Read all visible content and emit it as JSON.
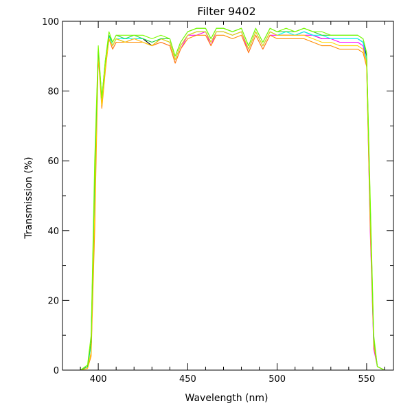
{
  "chart_data": {
    "type": "line",
    "title": "Filter 9402",
    "xlabel": "Wavelength (nm)",
    "ylabel": "Transmission (%)",
    "xlim": [
      380,
      565
    ],
    "ylim": [
      0,
      100
    ],
    "x_ticks": [
      400,
      450,
      500,
      550
    ],
    "y_ticks": [
      0,
      20,
      40,
      60,
      80,
      100
    ],
    "grid": false,
    "legend": "none",
    "colors": [
      "#000000",
      "#ff00ff",
      "#00ffff",
      "#ff8c00",
      "#ffd700",
      "#32cd32",
      "#7cfc00"
    ],
    "series": [
      {
        "color": "#000000",
        "x": [
          380,
          390,
          394,
          396,
          398,
          400,
          402,
          404,
          406,
          408,
          410,
          415,
          420,
          425,
          430,
          435,
          440,
          443,
          446,
          450,
          455,
          460,
          463,
          466,
          470,
          475,
          480,
          484,
          488,
          492,
          496,
          500,
          505,
          510,
          515,
          520,
          525,
          530,
          535,
          540,
          545,
          548,
          550,
          552,
          554,
          556,
          560,
          565
        ],
        "y": [
          0,
          0,
          1,
          8,
          55,
          92,
          77,
          88,
          96,
          93,
          95,
          94,
          95,
          95,
          93,
          95,
          94,
          89,
          93,
          96,
          97,
          97,
          94,
          97,
          97,
          96,
          97,
          92,
          97,
          93,
          97,
          96,
          96,
          96,
          97,
          96,
          95,
          95,
          95,
          95,
          95,
          94,
          90,
          45,
          8,
          1,
          0,
          0
        ]
      },
      {
        "color": "#ff00ff",
        "x": [
          380,
          390,
          394,
          396,
          398,
          400,
          402,
          404,
          406,
          408,
          410,
          415,
          420,
          425,
          430,
          435,
          440,
          443,
          446,
          450,
          455,
          460,
          463,
          466,
          470,
          475,
          480,
          484,
          488,
          492,
          496,
          500,
          505,
          510,
          515,
          520,
          525,
          530,
          535,
          540,
          545,
          548,
          550,
          552,
          554,
          556,
          560,
          565
        ],
        "y": [
          0,
          0,
          0.5,
          5,
          45,
          91,
          76,
          87,
          95,
          92,
          94,
          94,
          95,
          94,
          93,
          94,
          93,
          88,
          92,
          96,
          96,
          97,
          93,
          97,
          97,
          96,
          97,
          91,
          96,
          92,
          96,
          96,
          96,
          96,
          96,
          96,
          95,
          95,
          94,
          94,
          94,
          93,
          88,
          40,
          6,
          1,
          0,
          0
        ]
      },
      {
        "color": "#00ffff",
        "x": [
          380,
          390,
          394,
          396,
          398,
          400,
          402,
          404,
          406,
          408,
          410,
          415,
          420,
          425,
          430,
          435,
          440,
          443,
          446,
          450,
          455,
          460,
          463,
          466,
          470,
          475,
          480,
          484,
          488,
          492,
          496,
          500,
          505,
          510,
          515,
          520,
          525,
          530,
          535,
          540,
          545,
          548,
          550,
          552,
          554,
          556,
          560,
          565
        ],
        "y": [
          0,
          0,
          1,
          7,
          52,
          92,
          77,
          88,
          96,
          93,
          95,
          95,
          95,
          95,
          94,
          95,
          94,
          89,
          93,
          96,
          97,
          97,
          94,
          97,
          97,
          96,
          97,
          92,
          97,
          93,
          97,
          96,
          97,
          96,
          97,
          96,
          96,
          95,
          95,
          95,
          95,
          94,
          89,
          43,
          7,
          1,
          0,
          0
        ]
      },
      {
        "color": "#ff8c00",
        "x": [
          380,
          390,
          394,
          396,
          398,
          400,
          402,
          404,
          406,
          408,
          410,
          415,
          420,
          425,
          430,
          435,
          440,
          443,
          446,
          450,
          455,
          460,
          463,
          466,
          470,
          475,
          480,
          484,
          488,
          492,
          496,
          500,
          505,
          510,
          515,
          520,
          525,
          530,
          535,
          540,
          545,
          548,
          550,
          552,
          554,
          556,
          560,
          565
        ],
        "y": [
          0,
          0,
          0.5,
          4,
          40,
          90,
          75,
          86,
          95,
          92,
          94,
          94,
          94,
          94,
          93,
          94,
          93,
          88,
          92,
          95,
          96,
          96,
          93,
          96,
          96,
          95,
          96,
          91,
          96,
          92,
          96,
          95,
          95,
          95,
          95,
          94,
          93,
          93,
          92,
          92,
          92,
          91,
          87,
          42,
          7,
          1,
          0,
          0
        ]
      },
      {
        "color": "#ffd700",
        "x": [
          380,
          390,
          394,
          396,
          398,
          400,
          402,
          404,
          406,
          408,
          410,
          415,
          420,
          425,
          430,
          435,
          440,
          443,
          446,
          450,
          455,
          460,
          463,
          466,
          470,
          475,
          480,
          484,
          488,
          492,
          496,
          500,
          505,
          510,
          515,
          520,
          525,
          530,
          535,
          540,
          545,
          548,
          550,
          552,
          554,
          556,
          560,
          565
        ],
        "y": [
          0,
          0,
          0.5,
          5,
          46,
          91,
          76,
          87,
          95,
          93,
          95,
          94,
          95,
          94,
          93,
          95,
          94,
          89,
          93,
          96,
          97,
          97,
          94,
          97,
          97,
          96,
          97,
          92,
          97,
          93,
          97,
          96,
          96,
          96,
          96,
          95,
          94,
          94,
          93,
          93,
          93,
          92,
          88,
          44,
          8,
          1,
          0,
          0
        ]
      },
      {
        "color": "#32cd32",
        "x": [
          380,
          390,
          394,
          396,
          398,
          400,
          402,
          404,
          406,
          408,
          410,
          415,
          420,
          425,
          430,
          435,
          440,
          443,
          446,
          450,
          455,
          460,
          463,
          466,
          470,
          475,
          480,
          484,
          488,
          492,
          496,
          500,
          505,
          510,
          515,
          520,
          525,
          530,
          535,
          540,
          545,
          548,
          550,
          552,
          554,
          556,
          560,
          565
        ],
        "y": [
          0,
          0,
          1,
          8,
          56,
          92,
          78,
          89,
          96,
          94,
          96,
          95,
          96,
          95,
          94,
          95,
          95,
          90,
          94,
          97,
          98,
          98,
          95,
          98,
          98,
          97,
          98,
          93,
          98,
          94,
          98,
          97,
          97,
          97,
          98,
          97,
          96,
          96,
          96,
          96,
          96,
          95,
          91,
          48,
          9,
          1,
          0,
          0
        ]
      },
      {
        "color": "#7cfc00",
        "x": [
          380,
          390,
          394,
          396,
          398,
          400,
          402,
          404,
          406,
          408,
          410,
          415,
          420,
          425,
          430,
          435,
          440,
          443,
          446,
          450,
          455,
          460,
          463,
          466,
          470,
          475,
          480,
          484,
          488,
          492,
          496,
          500,
          505,
          510,
          515,
          520,
          525,
          530,
          535,
          540,
          545,
          548,
          550,
          552,
          554,
          556,
          560,
          565
        ],
        "y": [
          0,
          0,
          1.5,
          10,
          60,
          93,
          78,
          89,
          97,
          94,
          96,
          96,
          96,
          96,
          95,
          96,
          95,
          90,
          94,
          97,
          98,
          98,
          95,
          98,
          98,
          97,
          98,
          93,
          98,
          94,
          98,
          97,
          98,
          97,
          98,
          97,
          97,
          96,
          96,
          96,
          96,
          95,
          91,
          50,
          10,
          1,
          0,
          0
        ]
      }
    ]
  }
}
